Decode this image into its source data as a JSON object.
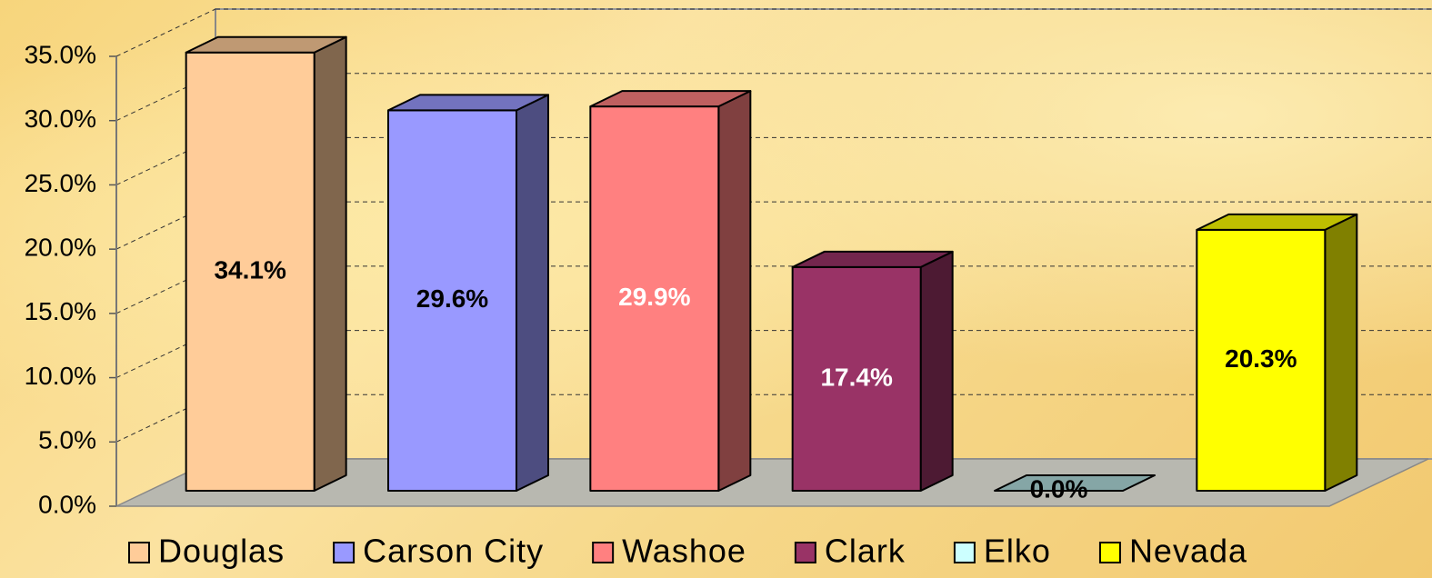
{
  "chart_data": {
    "type": "bar3d",
    "categories": [
      "Douglas",
      "Carson City",
      "Washoe",
      "Clark",
      "Elko",
      "Nevada"
    ],
    "values": [
      34.1,
      29.6,
      29.9,
      17.4,
      0.0,
      20.3
    ],
    "value_labels": [
      "34.1%",
      "29.6%",
      "29.9%",
      "17.4%",
      "0.0%",
      "20.3%"
    ],
    "colors": [
      "#ffcc99",
      "#9999ff",
      "#ff8080",
      "#993366",
      "#ccffff",
      "#ffff00"
    ],
    "label_colors": [
      "#000000",
      "#000000",
      "#ffffff",
      "#ffffff",
      "#000000",
      "#000000"
    ],
    "ylim": [
      0,
      35
    ],
    "yticks": [
      {
        "value": 0,
        "label": "0.0%"
      },
      {
        "value": 5,
        "label": "5.0%"
      },
      {
        "value": 10,
        "label": "10.0%"
      },
      {
        "value": 15,
        "label": "15.0%"
      },
      {
        "value": 20,
        "label": "20.0%"
      },
      {
        "value": 25,
        "label": "25.0%"
      },
      {
        "value": 30,
        "label": "30.0%"
      },
      {
        "value": 35,
        "label": "35.0%"
      }
    ],
    "grid": true,
    "legend": "bottom"
  }
}
